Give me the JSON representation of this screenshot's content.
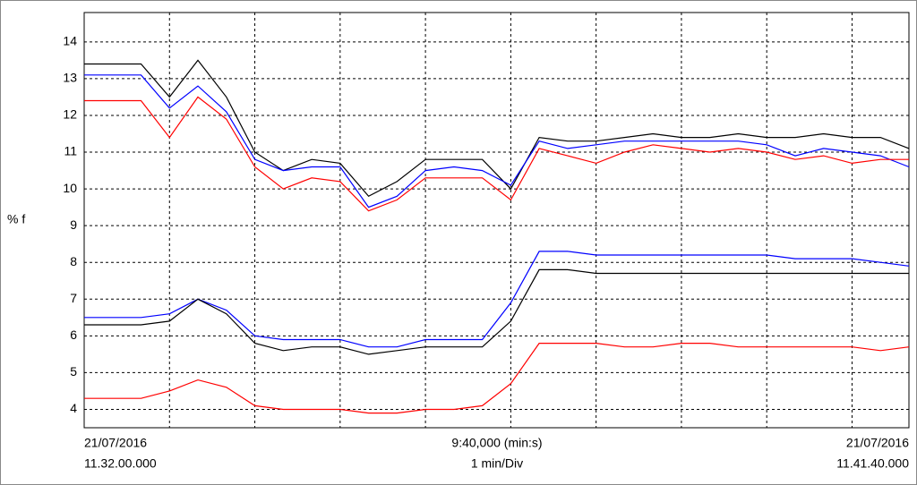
{
  "chart_data": {
    "type": "line",
    "ylabel": "% f",
    "x_start_date": "21/07/2016",
    "x_start_time": "11.32.00.000",
    "x_span": "9:40,000 (min:s)",
    "x_scale": "1 min/Div",
    "x_end_date": "21/07/2016",
    "x_end_time": "11.41.40.000",
    "x": [
      0,
      20,
      40,
      60,
      80,
      100,
      120,
      140,
      160,
      180,
      200,
      220,
      240,
      260,
      280,
      300,
      320,
      340,
      360,
      380,
      400,
      420,
      440,
      460,
      480,
      500,
      520,
      540,
      560,
      580
    ],
    "xlim": [
      0,
      580
    ],
    "xticks": [
      60,
      120,
      180,
      240,
      300,
      360,
      420,
      480,
      540
    ],
    "ylim": [
      3.5,
      14.8
    ],
    "yticks": [
      4,
      5,
      6,
      7,
      8,
      9,
      10,
      11,
      12,
      13,
      14
    ],
    "grid": true,
    "series": [
      {
        "color": "#000000",
        "values": [
          13.4,
          13.4,
          13.4,
          12.5,
          13.5,
          12.5,
          11.0,
          10.5,
          10.8,
          10.7,
          9.8,
          10.2,
          10.8,
          10.8,
          10.8,
          10.0,
          11.4,
          11.3,
          11.3,
          11.4,
          11.5,
          11.4,
          11.4,
          11.5,
          11.4,
          11.4,
          11.5,
          11.4,
          11.4,
          11.1
        ]
      },
      {
        "color": "#0000ff",
        "values": [
          13.1,
          13.1,
          13.1,
          12.2,
          12.8,
          12.1,
          10.8,
          10.5,
          10.6,
          10.6,
          9.5,
          9.8,
          10.5,
          10.6,
          10.5,
          10.1,
          11.3,
          11.1,
          11.2,
          11.3,
          11.3,
          11.3,
          11.3,
          11.3,
          11.2,
          10.9,
          11.1,
          11.0,
          10.9,
          10.6
        ]
      },
      {
        "color": "#ff0000",
        "values": [
          12.4,
          12.4,
          12.4,
          11.4,
          12.5,
          11.9,
          10.6,
          10.0,
          10.3,
          10.2,
          9.4,
          9.7,
          10.3,
          10.3,
          10.3,
          9.7,
          11.1,
          10.9,
          10.7,
          11.0,
          11.2,
          11.1,
          11.0,
          11.1,
          11.0,
          10.8,
          10.9,
          10.7,
          10.8,
          10.8
        ]
      },
      {
        "color": "#0000ff",
        "values": [
          6.5,
          6.5,
          6.5,
          6.6,
          7.0,
          6.7,
          6.0,
          5.9,
          5.9,
          5.9,
          5.7,
          5.7,
          5.9,
          5.9,
          5.9,
          6.9,
          8.3,
          8.3,
          8.2,
          8.2,
          8.2,
          8.2,
          8.2,
          8.2,
          8.2,
          8.1,
          8.1,
          8.1,
          8.0,
          7.9
        ]
      },
      {
        "color": "#000000",
        "values": [
          6.3,
          6.3,
          6.3,
          6.4,
          7.0,
          6.6,
          5.8,
          5.6,
          5.7,
          5.7,
          5.5,
          5.6,
          5.7,
          5.7,
          5.7,
          6.4,
          7.8,
          7.8,
          7.7,
          7.7,
          7.7,
          7.7,
          7.7,
          7.7,
          7.7,
          7.7,
          7.7,
          7.7,
          7.7,
          7.7
        ]
      },
      {
        "color": "#ff0000",
        "values": [
          4.3,
          4.3,
          4.3,
          4.5,
          4.8,
          4.6,
          4.1,
          4.0,
          4.0,
          4.0,
          3.9,
          3.9,
          4.0,
          4.0,
          4.1,
          4.7,
          5.8,
          5.8,
          5.8,
          5.7,
          5.7,
          5.8,
          5.8,
          5.7,
          5.7,
          5.7,
          5.7,
          5.7,
          5.6,
          5.7
        ]
      }
    ]
  }
}
